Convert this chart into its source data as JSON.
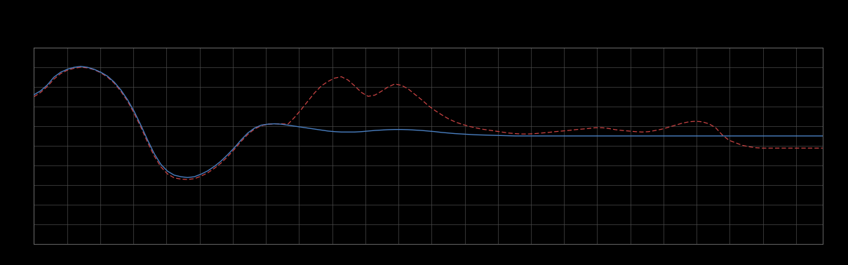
{
  "background_color": "#000000",
  "plot_bg_color": "#000000",
  "grid_color": "#4a4a4a",
  "axis_color": "#777777",
  "text_color": "#000000",
  "blue_line_color": "#4a7fc1",
  "red_line_color": "#cc4444",
  "figsize": [
    12.09,
    3.78
  ],
  "dpi": 100,
  "xlim": [
    0,
    119
  ],
  "ylim": [
    0,
    10
  ],
  "grid_major_x": 5,
  "grid_major_y": 1,
  "blue_y": [
    7.6,
    7.8,
    8.1,
    8.5,
    8.75,
    8.9,
    9.0,
    9.05,
    9.0,
    8.9,
    8.75,
    8.55,
    8.25,
    7.85,
    7.35,
    6.75,
    6.05,
    5.3,
    4.6,
    4.05,
    3.7,
    3.5,
    3.42,
    3.38,
    3.42,
    3.55,
    3.72,
    3.95,
    4.22,
    4.55,
    4.9,
    5.3,
    5.65,
    5.9,
    6.05,
    6.1,
    6.12,
    6.1,
    6.05,
    6.0,
    5.95,
    5.9,
    5.85,
    5.8,
    5.75,
    5.72,
    5.7,
    5.7,
    5.7,
    5.72,
    5.75,
    5.78,
    5.8,
    5.82,
    5.83,
    5.83,
    5.82,
    5.8,
    5.78,
    5.75,
    5.72,
    5.68,
    5.65,
    5.62,
    5.6,
    5.58,
    5.56,
    5.55,
    5.54,
    5.53,
    5.52,
    5.51,
    5.5,
    5.5,
    5.5,
    5.5,
    5.5,
    5.5,
    5.5,
    5.5,
    5.5,
    5.5,
    5.5,
    5.5,
    5.5,
    5.5,
    5.5,
    5.5,
    5.5,
    5.5,
    5.5,
    5.5,
    5.5,
    5.5,
    5.5,
    5.5,
    5.5,
    5.5,
    5.5,
    5.5,
    5.5,
    5.5,
    5.5,
    5.5,
    5.5,
    5.5,
    5.5,
    5.5,
    5.5,
    5.5,
    5.5,
    5.5,
    5.5,
    5.5,
    5.5,
    5.5,
    5.5,
    5.5,
    5.5
  ],
  "red_y": [
    7.5,
    7.72,
    8.02,
    8.4,
    8.68,
    8.85,
    8.95,
    9.0,
    8.97,
    8.88,
    8.72,
    8.5,
    8.2,
    7.78,
    7.28,
    6.65,
    5.95,
    5.18,
    4.48,
    3.92,
    3.56,
    3.36,
    3.3,
    3.28,
    3.32,
    3.45,
    3.62,
    3.85,
    4.12,
    4.45,
    4.82,
    5.22,
    5.58,
    5.85,
    6.02,
    6.1,
    6.12,
    6.12,
    6.1,
    6.45,
    6.85,
    7.28,
    7.7,
    8.05,
    8.28,
    8.45,
    8.52,
    8.35,
    8.05,
    7.72,
    7.52,
    7.58,
    7.78,
    8.0,
    8.15,
    8.08,
    7.9,
    7.62,
    7.35,
    7.05,
    6.8,
    6.58,
    6.38,
    6.22,
    6.1,
    6.0,
    5.92,
    5.85,
    5.8,
    5.75,
    5.7,
    5.65,
    5.62,
    5.6,
    5.6,
    5.62,
    5.65,
    5.68,
    5.72,
    5.75,
    5.78,
    5.82,
    5.85,
    5.88,
    5.92,
    5.92,
    5.88,
    5.82,
    5.78,
    5.75,
    5.72,
    5.7,
    5.72,
    5.78,
    5.85,
    5.95,
    6.05,
    6.15,
    6.22,
    6.25,
    6.22,
    6.12,
    5.92,
    5.55,
    5.28,
    5.15,
    5.02,
    4.95,
    4.9,
    4.88,
    4.88,
    4.88,
    4.88,
    4.88,
    4.88,
    4.88,
    4.88,
    4.88,
    4.88
  ]
}
